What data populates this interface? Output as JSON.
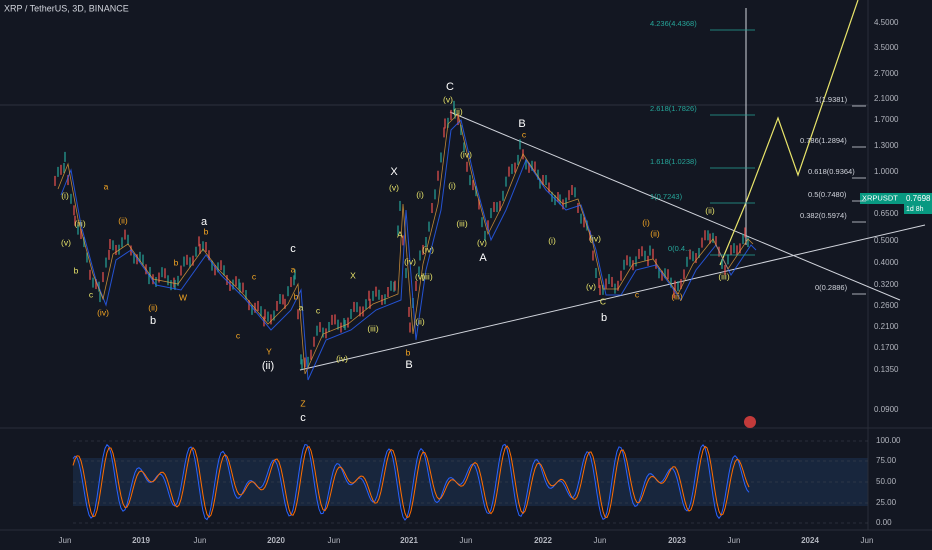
{
  "header": {
    "symbol": "XRP / TetherUS, 3D, BINANCE"
  },
  "price_axis": {
    "labels": [
      "4.5000",
      "3.5000",
      "2.7000",
      "2.1000",
      "1.7000",
      "1.3000",
      "1.0000",
      "0.6500",
      "0.5000",
      "0.4000",
      "0.3200",
      "0.2600",
      "0.2100",
      "0.1700",
      "0.1350",
      "0.0900"
    ]
  },
  "current_price": {
    "ticker": "XRPUSDT",
    "price": "0.7698",
    "countdown": "1d 8h"
  },
  "oscillator_axis": {
    "labels": [
      "100.00",
      "75.00",
      "50.00",
      "25.00",
      "0.00"
    ]
  },
  "time_axis": {
    "labels": [
      "Jun",
      "2019",
      "Jun",
      "2020",
      "Jun",
      "2021",
      "Jun",
      "2022",
      "Jun",
      "2023",
      "Jun",
      "2024",
      "Jun"
    ]
  },
  "fib_left": [
    "4.236(4.4368)",
    "2.618(1.7826)",
    "1.618(1.0238)",
    "1(0.7243)",
    "0(0.4..."
  ],
  "fib_right": [
    "1(1.9381)",
    "0.786(1.2894)",
    "0.618(0.9364)",
    "0.5(0.7480)",
    "0.382(0.5974)",
    "0(0.2886)"
  ],
  "waves": [
    "C",
    "(v)",
    "(ii)",
    "B",
    "c",
    "(iv)",
    "(i)",
    "(iii)",
    "(v)",
    "A",
    "(i)",
    "(iv)",
    "(ii)",
    "(iii)",
    "(v)",
    "C",
    "b",
    "c",
    "(i)",
    "(ii)",
    "(iii)",
    "(iv)",
    "(v)",
    "A",
    "(v)",
    "(i)",
    "(iii)",
    "(iv)",
    "(ii)",
    "b",
    "B",
    "X",
    "c",
    "a",
    "b",
    "Z",
    "c",
    "Y",
    "(ii)",
    "(iv)",
    "(iii)",
    "X",
    "c",
    "a",
    "b",
    "W",
    "c",
    "b",
    "(ii)",
    "(iv)",
    "(i)",
    "(iii)",
    "(v)",
    "b",
    "c",
    "(ii)",
    "a",
    "a",
    "c",
    "b"
  ]
}
